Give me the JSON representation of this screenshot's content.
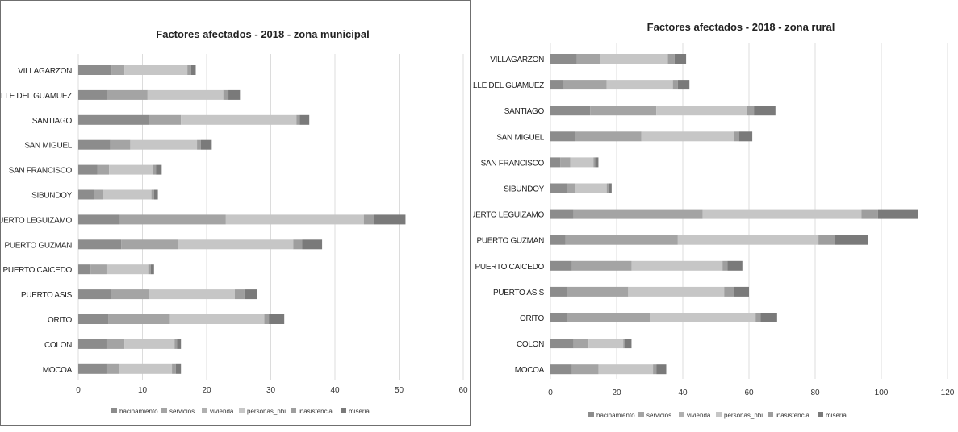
{
  "legend_colors": [
    "#8c8c8c",
    "#a4a4a4",
    "#b0b0b0",
    "#c6c6c6",
    "#9e9e9e",
    "#7a7a7a"
  ],
  "chart_data": [
    {
      "type": "bar",
      "stacked": true,
      "orientation": "horizontal",
      "title": "Factores afectados - 2018 - zona municipal",
      "xlim": [
        0,
        60
      ],
      "xticks": [
        "0",
        "10",
        "20",
        "30",
        "40",
        "50",
        "60"
      ],
      "grid": true,
      "legend_position": "bottom",
      "categories": [
        "VILLAGARZON",
        "VALLE DEL GUAMUEZ",
        "SANTIAGO",
        "SAN MIGUEL",
        "SAN FRANCISCO",
        "SIBUNDOY",
        "PUERTO LEGUIZAMO",
        "PUERTO GUZMAN",
        "PUERTO CAICEDO",
        "PUERTO ASIS",
        "ORITO",
        "COLON",
        "MOCOA"
      ],
      "series": [
        {
          "name": "hacinamiento",
          "values": [
            5.2,
            4.5,
            11.0,
            5.0,
            3.0,
            2.5,
            6.5,
            6.7,
            1.9,
            5.1,
            4.7,
            4.4,
            4.4
          ]
        },
        {
          "name": "servicios",
          "values": [
            2.0,
            6.3,
            5.0,
            3.1,
            1.8,
            1.4,
            16.5,
            8.8,
            2.5,
            5.9,
            9.6,
            2.8,
            1.9
          ]
        },
        {
          "name": "vivienda",
          "values": [
            0.0,
            0.0,
            0.0,
            0.0,
            0.0,
            0.0,
            0.0,
            0.0,
            0.0,
            0.0,
            0.0,
            0.0,
            0.0
          ]
        },
        {
          "name": "personas_nbi",
          "values": [
            9.8,
            11.8,
            18.0,
            10.4,
            6.9,
            7.5,
            21.5,
            18.0,
            6.5,
            13.4,
            14.7,
            7.8,
            8.3
          ]
        },
        {
          "name": "inasistencia",
          "values": [
            0.6,
            0.8,
            0.5,
            0.6,
            0.4,
            0.4,
            1.5,
            1.4,
            0.4,
            1.5,
            0.7,
            0.4,
            0.6
          ]
        },
        {
          "name": "miseria",
          "values": [
            0.7,
            1.8,
            1.5,
            1.7,
            0.9,
            0.6,
            5.0,
            3.1,
            0.5,
            2.0,
            2.4,
            0.6,
            0.8
          ]
        }
      ]
    },
    {
      "type": "bar",
      "stacked": true,
      "orientation": "horizontal",
      "title": "Factores afectados - 2018 - zona rural",
      "xlim": [
        0,
        120
      ],
      "xticks": [
        "0",
        "20",
        "40",
        "60",
        "80",
        "100",
        "120"
      ],
      "grid": true,
      "legend_position": "bottom",
      "categories": [
        "VILLAGARZON",
        "VALLE DEL GUAMUEZ",
        "SANTIAGO",
        "SAN MIGUEL",
        "SAN FRANCISCO",
        "SIBUNDOY",
        "PUERTO LEGUIZAMO",
        "PUERTO GUZMAN",
        "PUERTO CAICEDO",
        "PUERTO ASIS",
        "ORITO",
        "COLON",
        "MOCOA"
      ],
      "series": [
        {
          "name": "hacinamiento",
          "values": [
            8.0,
            4.0,
            12.0,
            7.5,
            3.0,
            5.0,
            7.0,
            4.5,
            6.5,
            5.0,
            5.0,
            7.0,
            6.5
          ]
        },
        {
          "name": "servicios",
          "values": [
            7.0,
            13.0,
            20.0,
            20.0,
            3.0,
            2.5,
            39.0,
            34.0,
            18.0,
            18.5,
            25.0,
            4.5,
            8.0
          ]
        },
        {
          "name": "vivienda",
          "values": [
            0.0,
            0.0,
            0.0,
            0.0,
            0.0,
            0.0,
            0.0,
            0.0,
            0.0,
            0.0,
            0.0,
            0.0,
            0.0
          ]
        },
        {
          "name": "personas_nbi",
          "values": [
            20.5,
            20.0,
            27.5,
            28.0,
            7.0,
            9.5,
            48.0,
            42.5,
            27.5,
            29.0,
            32.0,
            10.5,
            16.5
          ]
        },
        {
          "name": "inasistencia",
          "values": [
            2.0,
            1.5,
            2.0,
            1.5,
            0.5,
            0.5,
            5.0,
            5.0,
            1.5,
            3.0,
            1.5,
            0.5,
            1.0
          ]
        },
        {
          "name": "miseria",
          "values": [
            3.5,
            3.5,
            6.5,
            4.0,
            1.0,
            1.0,
            12.0,
            10.0,
            4.5,
            4.5,
            5.0,
            2.0,
            3.0
          ]
        }
      ]
    }
  ]
}
